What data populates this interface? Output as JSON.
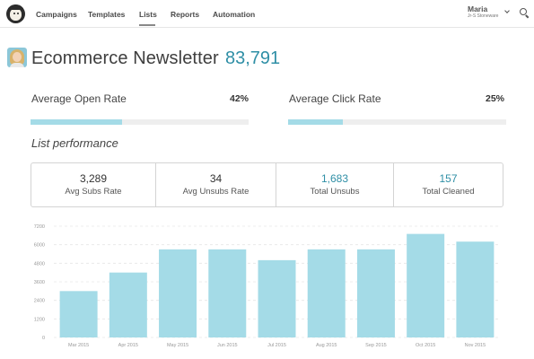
{
  "nav": {
    "items": [
      {
        "label": "Campaigns"
      },
      {
        "label": "Templates"
      },
      {
        "label": "Lists"
      },
      {
        "label": "Reports"
      },
      {
        "label": "Automation"
      }
    ],
    "active": "Lists"
  },
  "user": {
    "name": "Maria",
    "org": "Jr-S Stoneware"
  },
  "page": {
    "title": "Ecommerce Newsletter",
    "subscriber_count": "83,791"
  },
  "rates": {
    "open": {
      "label": "Average Open Rate",
      "value": "42%",
      "fraction": 0.42
    },
    "click": {
      "label": "Average Click Rate",
      "value": "25%",
      "fraction": 0.25
    }
  },
  "section_title": "List performance",
  "stats": [
    {
      "value": "3,289",
      "label": "Avg Subs Rate",
      "accent": false
    },
    {
      "value": "34",
      "label": "Avg Unsubs Rate",
      "accent": false
    },
    {
      "value": "1,683",
      "label": "Total Unsubs",
      "accent": true
    },
    {
      "value": "157",
      "label": "Total Cleaned",
      "accent": true
    }
  ],
  "colors": {
    "accent": "#2f8fa6",
    "bar": "#a4dbe7",
    "progress_fill": "#a4dbe7"
  },
  "chart_data": {
    "type": "bar",
    "categories": [
      "Mar 2015",
      "Apr 2015",
      "May 2015",
      "Jun 2015",
      "Jul 2015",
      "Aug 2015",
      "Sep 2015",
      "Oct 2015",
      "Nov 2015"
    ],
    "values": [
      3000,
      4200,
      5700,
      5700,
      5000,
      5700,
      5700,
      6700,
      6200
    ],
    "yticks": [
      "0",
      "1200",
      "2400",
      "3600",
      "4800",
      "6000",
      "7200"
    ],
    "ylim": [
      0,
      7200
    ],
    "grid": true,
    "title": "",
    "xlabel": "",
    "ylabel": ""
  }
}
